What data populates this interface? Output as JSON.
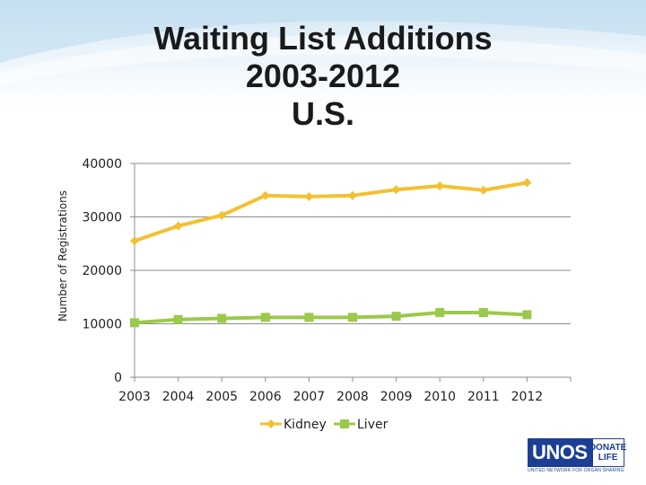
{
  "slide": {
    "title_lines": [
      "Waiting List Additions",
      "2003-2012",
      "U.S."
    ],
    "logo": {
      "main": "UNOS",
      "side_top": "DONATE",
      "side_bottom": "LIFE",
      "tagline": "UNITED NETWORK FOR ORGAN SHARING"
    }
  },
  "chart_data": {
    "type": "line",
    "title": "Waiting List Additions 2003-2012 U.S.",
    "xlabel": "",
    "ylabel": "Number of Registrations",
    "categories": [
      "2003",
      "2004",
      "2005",
      "2006",
      "2007",
      "2008",
      "2009",
      "2010",
      "2011",
      "2012"
    ],
    "ylim": [
      0,
      40000
    ],
    "yticks": [
      0,
      10000,
      20000,
      30000,
      40000
    ],
    "grid": true,
    "legend": "bottom",
    "series": [
      {
        "name": "Kidney",
        "color": "#f2c132",
        "marker": "diamond",
        "values": [
          25500,
          28300,
          30300,
          34000,
          33800,
          34000,
          35100,
          35800,
          35000,
          36400
        ]
      },
      {
        "name": "Liver",
        "color": "#9bc94a",
        "marker": "square",
        "values": [
          10200,
          10800,
          11000,
          11200,
          11200,
          11200,
          11400,
          12100,
          12100,
          11700
        ]
      }
    ]
  }
}
